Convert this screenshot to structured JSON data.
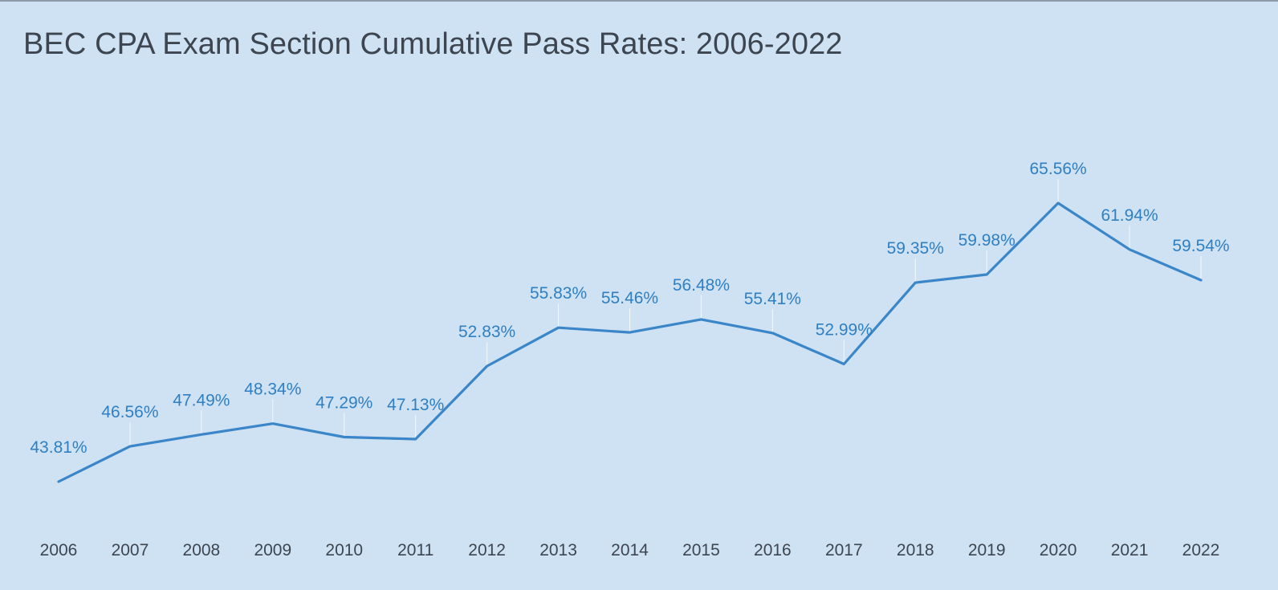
{
  "chart_data": {
    "type": "line",
    "title": "BEC CPA Exam Section Cumulative Pass Rates: 2006-2022",
    "categories": [
      "2006",
      "2007",
      "2008",
      "2009",
      "2010",
      "2011",
      "2012",
      "2013",
      "2014",
      "2015",
      "2016",
      "2017",
      "2018",
      "2019",
      "2020",
      "2021",
      "2022"
    ],
    "series": [
      {
        "values": [
          43.81,
          46.56,
          47.49,
          48.34,
          47.29,
          47.13,
          52.83,
          55.83,
          55.46,
          56.48,
          55.41,
          52.99,
          59.35,
          59.98,
          65.56,
          61.94,
          59.54
        ],
        "labels": [
          "43.81%",
          "46.56%",
          "47.49%",
          "48.34%",
          "47.29%",
          "47.13%",
          "52.83%",
          "55.83%",
          "55.46%",
          "56.48%",
          "55.41%",
          "52.99%",
          "59.35%",
          "59.98%",
          "65.56%",
          "61.94%",
          "59.54%"
        ],
        "color": "#3a86c8"
      }
    ],
    "xlabel": "",
    "ylabel": "",
    "grid": false,
    "label_color": "#2f7fc3",
    "background": "#cfe2f3"
  }
}
